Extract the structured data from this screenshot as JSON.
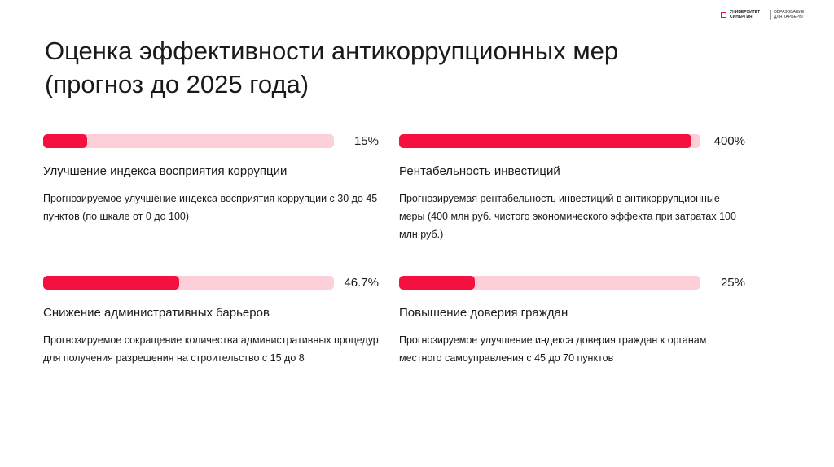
{
  "logo": {
    "name": "УНИВЕРСИТЕТ СИНЕРГИЯ",
    "tagline": "ОБРАЗОВАНИЕ ДЛЯ КАРЬЕРЫ"
  },
  "title": "Оценка эффективности антикоррупционных мер (прогноз до 2025 года)",
  "chart_data": {
    "type": "progress",
    "color": "#f5113f",
    "track_color": "#fdd0d9",
    "items": [
      {
        "name": "Улучшение индекса восприятия коррупции",
        "description": "Прогнозируемое улучшение индекса восприятия коррупции с 30 до 45 пунктов (по шкале от 0 до 100)",
        "value": 15,
        "value_label": "15%",
        "xlim": [
          0,
          100
        ]
      },
      {
        "name": "Рентабельность инвестиций",
        "description": "Прогнозируемая рентабельность инвестиций в антикоррупционные меры (400 млн руб. чистого экономического эффекта при затратах 100 млн руб.)",
        "value": 400,
        "value_label": "400%",
        "xlim": [
          0,
          412
        ]
      },
      {
        "name": "Снижение административных барьеров",
        "description": "Прогнозируемое сокращение количества административных процедур для получения разрешения на строительство с 15 до 8",
        "value": 46.7,
        "value_label": "46.7%",
        "xlim": [
          0,
          100
        ]
      },
      {
        "name": "Повышение доверия граждан",
        "description": "Прогнозируемое улучшение индекса доверия граждан к органам местного самоуправления с 45 до 70 пунктов",
        "value": 25,
        "value_label": "25%",
        "xlim": [
          0,
          100
        ]
      }
    ]
  }
}
